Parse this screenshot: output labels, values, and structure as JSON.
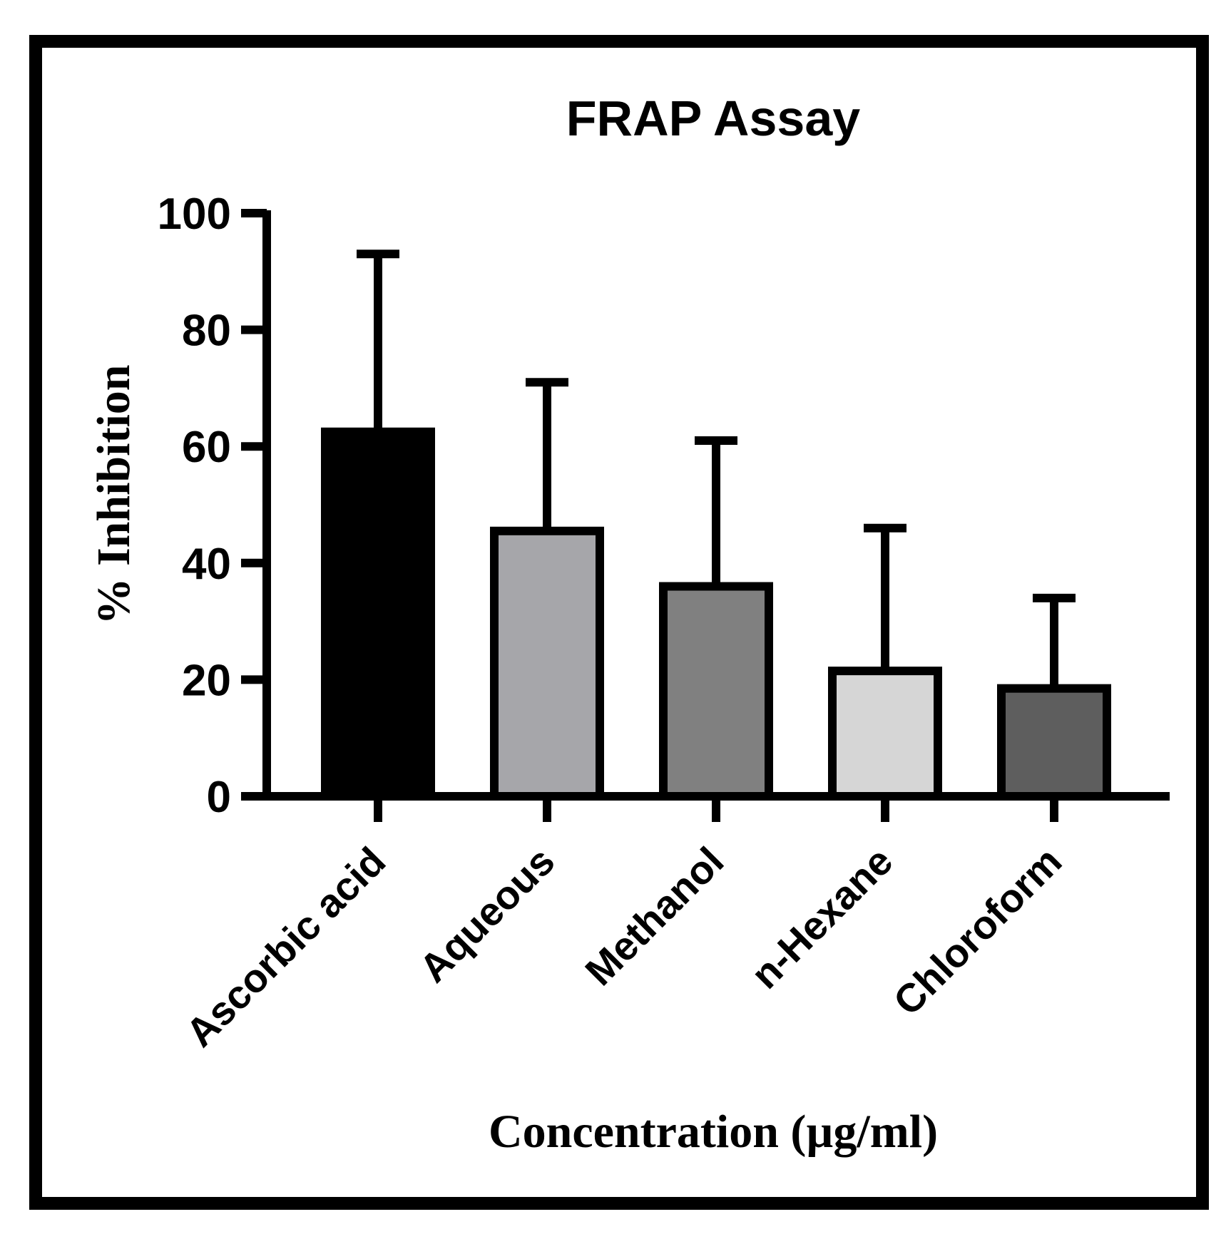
{
  "chart_data": {
    "type": "bar",
    "title": "FRAP Assay",
    "xlabel": "Concentration (µg/ml)",
    "ylabel": "% Inhibition",
    "categories": [
      "Ascorbic acid",
      "Aqueous",
      "Methanol",
      "n-Hexane",
      "Chloroform"
    ],
    "values": [
      62.5,
      45.5,
      36,
      21.5,
      18.5
    ],
    "error_upper": [
      93,
      71,
      61,
      46,
      34
    ],
    "colors": [
      "#000000",
      "#a6a6aa",
      "#808080",
      "#d6d6d6",
      "#5e5e5e"
    ],
    "ylim": [
      0,
      100
    ],
    "yticks": [
      "0",
      "20",
      "40",
      "60",
      "80",
      "100"
    ],
    "grid": false,
    "legend": "none",
    "frame_border": true
  }
}
